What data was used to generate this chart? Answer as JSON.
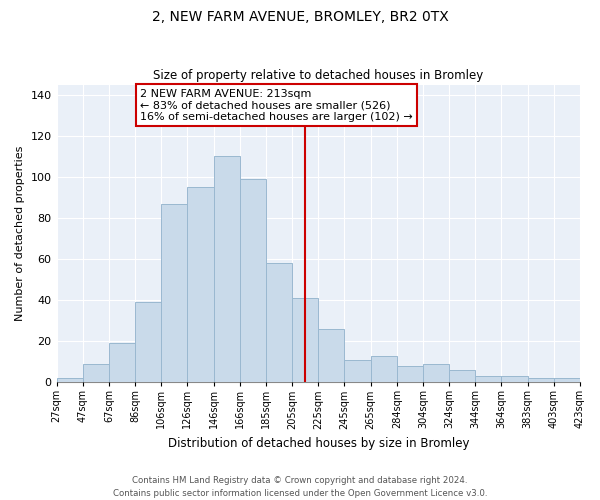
{
  "title": "2, NEW FARM AVENUE, BROMLEY, BR2 0TX",
  "subtitle": "Size of property relative to detached houses in Bromley",
  "xlabel": "Distribution of detached houses by size in Bromley",
  "ylabel": "Number of detached properties",
  "bar_labels": [
    "27sqm",
    "47sqm",
    "67sqm",
    "86sqm",
    "106sqm",
    "126sqm",
    "146sqm",
    "166sqm",
    "185sqm",
    "205sqm",
    "225sqm",
    "245sqm",
    "265sqm",
    "284sqm",
    "304sqm",
    "324sqm",
    "344sqm",
    "364sqm",
    "383sqm",
    "403sqm",
    "423sqm"
  ],
  "bar_values": [
    2,
    9,
    19,
    39,
    87,
    95,
    110,
    99,
    58,
    41,
    26,
    11,
    13,
    8,
    9,
    6,
    3,
    3,
    2,
    2
  ],
  "bar_color": "#c9daea",
  "bar_edge_color": "#9ab8d0",
  "vline_color": "#cc0000",
  "annotation_text": "2 NEW FARM AVENUE: 213sqm\n← 83% of detached houses are smaller (526)\n16% of semi-detached houses are larger (102) →",
  "annotation_box_color": "#ffffff",
  "annotation_box_edge": "#cc0000",
  "ylim": [
    0,
    145
  ],
  "yticks": [
    0,
    20,
    40,
    60,
    80,
    100,
    120,
    140
  ],
  "footer_line1": "Contains HM Land Registry data © Crown copyright and database right 2024.",
  "footer_line2": "Contains public sector information licensed under the Open Government Licence v3.0.",
  "background_color": "#ffffff",
  "plot_bg_color": "#eaf0f8",
  "grid_color": "#ffffff",
  "title_fontsize": 10,
  "subtitle_fontsize": 8.5,
  "ylabel_fontsize": 8,
  "xlabel_fontsize": 8.5
}
